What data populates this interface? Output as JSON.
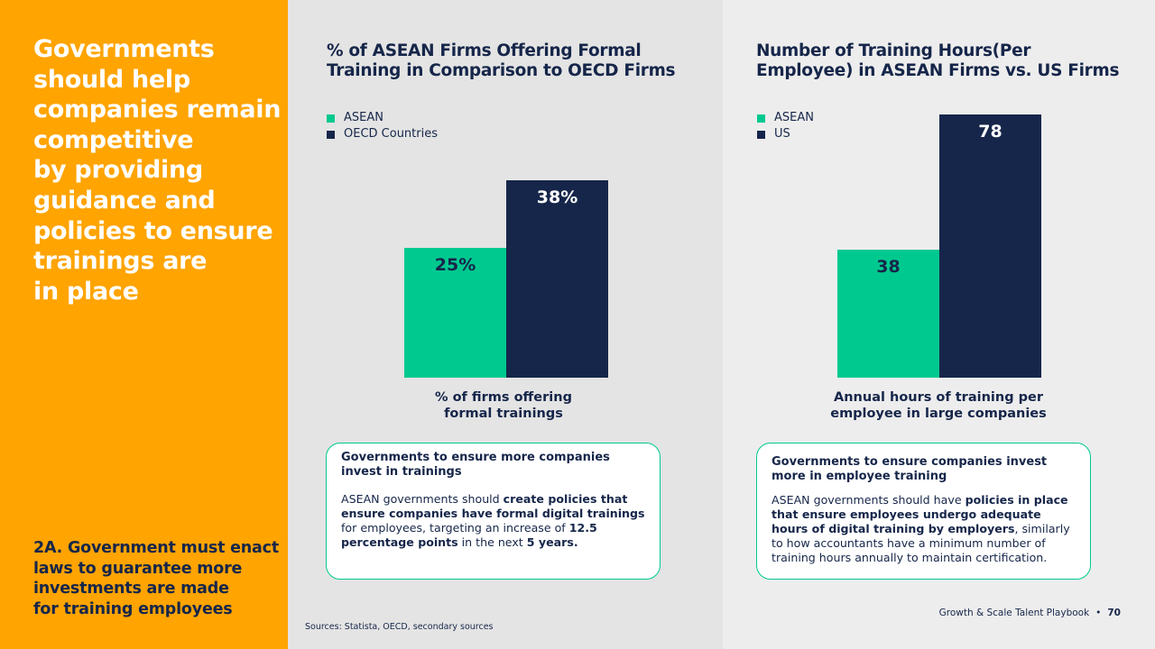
{
  "left": {
    "headline_lines": [
      "Governments",
      "should help",
      "companies remain",
      "competitive",
      "by providing",
      "guidance and",
      "policies to ensure",
      "trainings are",
      "in place"
    ],
    "subhead_lines": [
      "2A. Government must enact",
      "laws to guarantee more",
      "investments are made",
      "for training employees"
    ]
  },
  "colors": {
    "orange": "#ffa400",
    "green": "#00c98f",
    "navy": "#16264a"
  },
  "chart_data": [
    {
      "type": "bar",
      "title": "% of ASEAN Firms Offering Formal Training in Comparison to OECD Firms",
      "categories": [
        "% of firms offering formal trainings"
      ],
      "xlabel": "% of firms offering formal trainings",
      "series": [
        {
          "name": "ASEAN",
          "values": [
            25
          ],
          "label": "25%",
          "color": "#00c98f"
        },
        {
          "name": "OECD Countries",
          "values": [
            38
          ],
          "label": "38%",
          "color": "#16264a"
        }
      ],
      "legend": "top-left",
      "grid": false
    },
    {
      "type": "bar",
      "title": "Number of Training Hours(Per Employee) in ASEAN Firms vs. US Firms",
      "categories": [
        "Annual hours of training per employee in large companies"
      ],
      "xlabel": "Annual hours of training per employee in large companies",
      "series": [
        {
          "name": "ASEAN",
          "values": [
            38
          ],
          "label": "38",
          "color": "#00c98f"
        },
        {
          "name": "US",
          "values": [
            78
          ],
          "label": "78",
          "color": "#16264a"
        }
      ],
      "legend": "top-left",
      "grid": false
    }
  ],
  "chart1": {
    "title_lines": [
      "% of ASEAN Firms Offering Formal",
      "Training in Comparison to OECD Firms"
    ],
    "caption_lines": [
      "% of firms offering",
      "formal trainings"
    ]
  },
  "chart2": {
    "title_lines": [
      "Number of Training Hours(Per",
      "Employee) in ASEAN Firms vs. US Firms"
    ],
    "caption_lines": [
      "Annual hours of training per",
      "employee in large companies"
    ]
  },
  "card1": {
    "title": "Governments to ensure more companies invest in trainings",
    "body": [
      {
        "t": "ASEAN governments should ",
        "b": false
      },
      {
        "t": "create policies that ensure companies have formal digital trainings",
        "b": true
      },
      {
        "t": " for employees, targeting an increase of ",
        "b": false
      },
      {
        "t": "12.5 percentage points",
        "b": true
      },
      {
        "t": " in the next ",
        "b": false
      },
      {
        "t": "5 years.",
        "b": true
      }
    ]
  },
  "card2": {
    "title": "Governments to ensure companies invest more in employee training",
    "body": [
      {
        "t": "ASEAN governments should have ",
        "b": false
      },
      {
        "t": "policies in place that ensure employees undergo adequate hours of digital training by employers",
        "b": true
      },
      {
        "t": ", similarly to how accountants have a minimum number of training hours annually to maintain certification.",
        "b": false
      }
    ]
  },
  "footer": {
    "sources": "Sources: Statista, OECD, secondary sources",
    "playbook": "Growth & Scale Talent Playbook",
    "separator": "•",
    "page": "70"
  }
}
